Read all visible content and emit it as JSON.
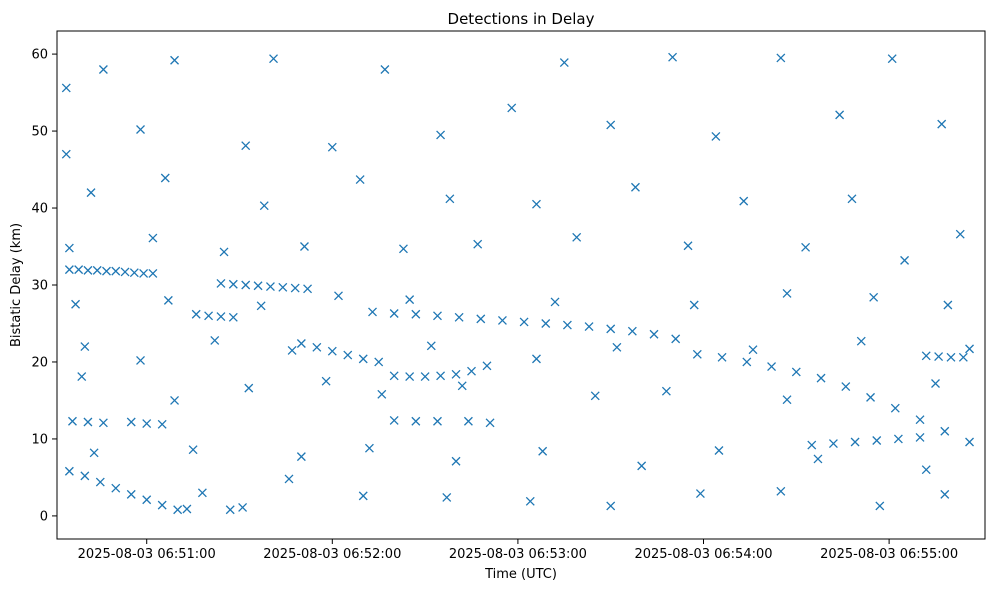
{
  "chart_data": {
    "type": "scatter",
    "title": "Detections in Delay",
    "xlabel": "Time (UTC)",
    "ylabel": "Bistatic Delay (km)",
    "x_axis_type": "time",
    "xlim": [
      "2025-08-03 06:50:31",
      "2025-08-03 06:55:31"
    ],
    "ylim": [
      -3,
      63
    ],
    "x_ticks": [
      "2025-08-03 06:51:00",
      "2025-08-03 06:52:00",
      "2025-08-03 06:53:00",
      "2025-08-03 06:54:00",
      "2025-08-03 06:55:00"
    ],
    "y_ticks": [
      0,
      10,
      20,
      30,
      40,
      50,
      60
    ],
    "grid": false,
    "marker": "x",
    "series": [
      {
        "color": "#1f77b4",
        "points": [
          [
            "2025-08-03 06:50:35",
            32.0
          ],
          [
            "2025-08-03 06:50:38",
            32.0
          ],
          [
            "2025-08-03 06:50:41",
            31.9
          ],
          [
            "2025-08-03 06:50:44",
            31.9
          ],
          [
            "2025-08-03 06:50:47",
            31.8
          ],
          [
            "2025-08-03 06:50:50",
            31.8
          ],
          [
            "2025-08-03 06:50:53",
            31.7
          ],
          [
            "2025-08-03 06:50:56",
            31.6
          ],
          [
            "2025-08-03 06:50:59",
            31.5
          ],
          [
            "2025-08-03 06:51:02",
            31.5
          ],
          [
            "2025-08-03 06:51:24",
            30.2
          ],
          [
            "2025-08-03 06:51:28",
            30.1
          ],
          [
            "2025-08-03 06:51:32",
            30.0
          ],
          [
            "2025-08-03 06:51:36",
            29.9
          ],
          [
            "2025-08-03 06:51:40",
            29.8
          ],
          [
            "2025-08-03 06:51:44",
            29.7
          ],
          [
            "2025-08-03 06:51:48",
            29.6
          ],
          [
            "2025-08-03 06:51:52",
            29.5
          ],
          [
            "2025-08-03 06:51:16",
            26.2
          ],
          [
            "2025-08-03 06:51:20",
            26.0
          ],
          [
            "2025-08-03 06:51:24",
            25.9
          ],
          [
            "2025-08-03 06:51:28",
            25.8
          ],
          [
            "2025-08-03 06:52:13",
            26.5
          ],
          [
            "2025-08-03 06:52:20",
            26.3
          ],
          [
            "2025-08-03 06:52:27",
            26.2
          ],
          [
            "2025-08-03 06:52:34",
            26.0
          ],
          [
            "2025-08-03 06:52:41",
            25.8
          ],
          [
            "2025-08-03 06:52:48",
            25.6
          ],
          [
            "2025-08-03 06:52:55",
            25.4
          ],
          [
            "2025-08-03 06:53:02",
            25.2
          ],
          [
            "2025-08-03 06:53:09",
            25.0
          ],
          [
            "2025-08-03 06:53:16",
            24.8
          ],
          [
            "2025-08-03 06:53:23",
            24.6
          ],
          [
            "2025-08-03 06:53:30",
            24.3
          ],
          [
            "2025-08-03 06:53:37",
            24.0
          ],
          [
            "2025-08-03 06:53:44",
            23.6
          ],
          [
            "2025-08-03 06:53:51",
            23.0
          ],
          [
            "2025-08-03 06:51:50",
            22.4
          ],
          [
            "2025-08-03 06:51:55",
            21.9
          ],
          [
            "2025-08-03 06:52:00",
            21.4
          ],
          [
            "2025-08-03 06:52:05",
            20.9
          ],
          [
            "2025-08-03 06:52:10",
            20.4
          ],
          [
            "2025-08-03 06:52:15",
            20.0
          ],
          [
            "2025-08-03 06:52:20",
            18.2
          ],
          [
            "2025-08-03 06:52:25",
            18.1
          ],
          [
            "2025-08-03 06:52:30",
            18.1
          ],
          [
            "2025-08-03 06:52:35",
            18.2
          ],
          [
            "2025-08-03 06:52:40",
            18.4
          ],
          [
            "2025-08-03 06:52:45",
            18.8
          ],
          [
            "2025-08-03 06:52:50",
            19.5
          ],
          [
            "2025-08-03 06:53:58",
            21.0
          ],
          [
            "2025-08-03 06:54:06",
            20.6
          ],
          [
            "2025-08-03 06:54:14",
            20.0
          ],
          [
            "2025-08-03 06:54:22",
            19.4
          ],
          [
            "2025-08-03 06:54:30",
            18.7
          ],
          [
            "2025-08-03 06:54:38",
            17.9
          ],
          [
            "2025-08-03 06:54:46",
            16.8
          ],
          [
            "2025-08-03 06:54:54",
            15.4
          ],
          [
            "2025-08-03 06:55:02",
            14.0
          ],
          [
            "2025-08-03 06:55:10",
            12.5
          ],
          [
            "2025-08-03 06:55:18",
            11.0
          ],
          [
            "2025-08-03 06:55:26",
            9.6
          ],
          [
            "2025-08-03 06:54:35",
            9.2
          ],
          [
            "2025-08-03 06:54:42",
            9.4
          ],
          [
            "2025-08-03 06:54:49",
            9.6
          ],
          [
            "2025-08-03 06:54:56",
            9.8
          ],
          [
            "2025-08-03 06:55:03",
            10.0
          ],
          [
            "2025-08-03 06:55:10",
            10.2
          ],
          [
            "2025-08-03 06:55:12",
            20.8
          ],
          [
            "2025-08-03 06:55:16",
            20.7
          ],
          [
            "2025-08-03 06:55:20",
            20.6
          ],
          [
            "2025-08-03 06:55:24",
            20.6
          ],
          [
            "2025-08-03 06:50:35",
            5.8
          ],
          [
            "2025-08-03 06:50:40",
            5.2
          ],
          [
            "2025-08-03 06:50:45",
            4.4
          ],
          [
            "2025-08-03 06:50:50",
            3.6
          ],
          [
            "2025-08-03 06:50:55",
            2.8
          ],
          [
            "2025-08-03 06:51:00",
            2.1
          ],
          [
            "2025-08-03 06:51:05",
            1.4
          ],
          [
            "2025-08-03 06:51:10",
            0.8
          ],
          [
            "2025-08-03 06:50:36",
            12.3
          ],
          [
            "2025-08-03 06:50:41",
            12.2
          ],
          [
            "2025-08-03 06:50:46",
            12.1
          ],
          [
            "2025-08-03 06:50:55",
            12.2
          ],
          [
            "2025-08-03 06:51:00",
            12.0
          ],
          [
            "2025-08-03 06:51:05",
            11.9
          ],
          [
            "2025-08-03 06:52:20",
            12.4
          ],
          [
            "2025-08-03 06:52:27",
            12.3
          ],
          [
            "2025-08-03 06:52:34",
            12.3
          ],
          [
            "2025-08-03 06:52:44",
            12.3
          ],
          [
            "2025-08-03 06:52:51",
            12.1
          ],
          [
            "2025-08-03 06:51:13",
            0.9
          ],
          [
            "2025-08-03 06:51:27",
            0.8
          ],
          [
            "2025-08-03 06:51:31",
            1.1
          ],
          [
            "2025-08-03 06:50:34",
            55.6
          ],
          [
            "2025-08-03 06:50:46",
            58.0
          ],
          [
            "2025-08-03 06:51:09",
            59.2
          ],
          [
            "2025-08-03 06:51:41",
            59.4
          ],
          [
            "2025-08-03 06:52:17",
            58.0
          ],
          [
            "2025-08-03 06:53:15",
            58.9
          ],
          [
            "2025-08-03 06:53:50",
            59.6
          ],
          [
            "2025-08-03 06:54:25",
            59.5
          ],
          [
            "2025-08-03 06:55:01",
            59.4
          ],
          [
            "2025-08-03 06:50:34",
            47.0
          ],
          [
            "2025-08-03 06:50:58",
            50.2
          ],
          [
            "2025-08-03 06:51:32",
            48.1
          ],
          [
            "2025-08-03 06:52:00",
            47.9
          ],
          [
            "2025-08-03 06:52:35",
            49.5
          ],
          [
            "2025-08-03 06:52:58",
            53.0
          ],
          [
            "2025-08-03 06:53:30",
            50.8
          ],
          [
            "2025-08-03 06:54:04",
            49.3
          ],
          [
            "2025-08-03 06:54:44",
            52.1
          ],
          [
            "2025-08-03 06:55:17",
            50.9
          ],
          [
            "2025-08-03 06:50:42",
            42.0
          ],
          [
            "2025-08-03 06:51:06",
            43.9
          ],
          [
            "2025-08-03 06:51:38",
            40.3
          ],
          [
            "2025-08-03 06:52:09",
            43.7
          ],
          [
            "2025-08-03 06:52:38",
            41.2
          ],
          [
            "2025-08-03 06:53:06",
            40.5
          ],
          [
            "2025-08-03 06:53:38",
            42.7
          ],
          [
            "2025-08-03 06:54:13",
            40.9
          ],
          [
            "2025-08-03 06:54:48",
            41.2
          ],
          [
            "2025-08-03 06:55:23",
            36.6
          ],
          [
            "2025-08-03 06:50:35",
            34.8
          ],
          [
            "2025-08-03 06:51:02",
            36.1
          ],
          [
            "2025-08-03 06:51:25",
            34.3
          ],
          [
            "2025-08-03 06:51:51",
            35.0
          ],
          [
            "2025-08-03 06:52:23",
            34.7
          ],
          [
            "2025-08-03 06:52:47",
            35.3
          ],
          [
            "2025-08-03 06:53:19",
            36.2
          ],
          [
            "2025-08-03 06:53:55",
            35.1
          ],
          [
            "2025-08-03 06:54:33",
            34.9
          ],
          [
            "2025-08-03 06:55:05",
            33.2
          ],
          [
            "2025-08-03 06:50:37",
            27.5
          ],
          [
            "2025-08-03 06:51:07",
            28.0
          ],
          [
            "2025-08-03 06:51:37",
            27.3
          ],
          [
            "2025-08-03 06:52:02",
            28.6
          ],
          [
            "2025-08-03 06:52:25",
            28.1
          ],
          [
            "2025-08-03 06:53:12",
            27.8
          ],
          [
            "2025-08-03 06:53:57",
            27.4
          ],
          [
            "2025-08-03 06:54:27",
            28.9
          ],
          [
            "2025-08-03 06:54:55",
            28.4
          ],
          [
            "2025-08-03 06:55:19",
            27.4
          ],
          [
            "2025-08-03 06:50:40",
            22.0
          ],
          [
            "2025-08-03 06:50:58",
            20.2
          ],
          [
            "2025-08-03 06:51:22",
            22.8
          ],
          [
            "2025-08-03 06:51:47",
            21.5
          ],
          [
            "2025-08-03 06:52:32",
            22.1
          ],
          [
            "2025-08-03 06:53:06",
            20.4
          ],
          [
            "2025-08-03 06:53:32",
            21.9
          ],
          [
            "2025-08-03 06:54:16",
            21.6
          ],
          [
            "2025-08-03 06:54:51",
            22.7
          ],
          [
            "2025-08-03 06:55:26",
            21.7
          ],
          [
            "2025-08-03 06:50:39",
            18.1
          ],
          [
            "2025-08-03 06:51:09",
            15.0
          ],
          [
            "2025-08-03 06:51:33",
            16.6
          ],
          [
            "2025-08-03 06:51:58",
            17.5
          ],
          [
            "2025-08-03 06:52:16",
            15.8
          ],
          [
            "2025-08-03 06:52:42",
            16.9
          ],
          [
            "2025-08-03 06:53:25",
            15.6
          ],
          [
            "2025-08-03 06:53:48",
            16.2
          ],
          [
            "2025-08-03 06:54:27",
            15.1
          ],
          [
            "2025-08-03 06:55:15",
            17.2
          ],
          [
            "2025-08-03 06:50:43",
            8.2
          ],
          [
            "2025-08-03 06:51:15",
            8.6
          ],
          [
            "2025-08-03 06:51:50",
            7.7
          ],
          [
            "2025-08-03 06:52:12",
            8.8
          ],
          [
            "2025-08-03 06:52:40",
            7.1
          ],
          [
            "2025-08-03 06:53:08",
            8.4
          ],
          [
            "2025-08-03 06:53:40",
            6.5
          ],
          [
            "2025-08-03 06:54:05",
            8.5
          ],
          [
            "2025-08-03 06:54:37",
            7.4
          ],
          [
            "2025-08-03 06:55:12",
            6.0
          ],
          [
            "2025-08-03 06:51:18",
            3.0
          ],
          [
            "2025-08-03 06:51:46",
            4.8
          ],
          [
            "2025-08-03 06:52:10",
            2.6
          ],
          [
            "2025-08-03 06:52:37",
            2.4
          ],
          [
            "2025-08-03 06:53:04",
            1.9
          ],
          [
            "2025-08-03 06:53:30",
            1.3
          ],
          [
            "2025-08-03 06:53:59",
            2.9
          ],
          [
            "2025-08-03 06:54:25",
            3.2
          ],
          [
            "2025-08-03 06:54:57",
            1.3
          ],
          [
            "2025-08-03 06:55:18",
            2.8
          ]
        ]
      }
    ]
  }
}
